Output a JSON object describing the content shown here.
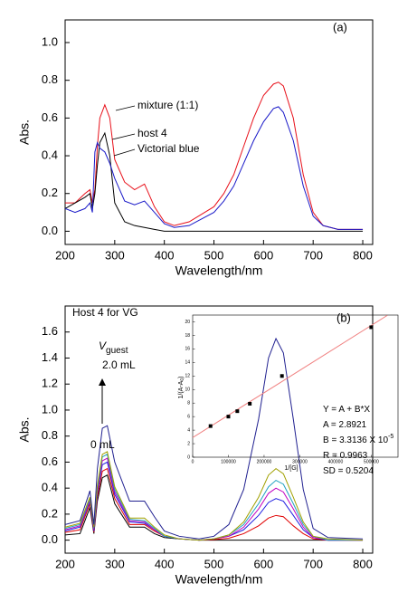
{
  "chart_data": [
    {
      "type": "line",
      "panel_label": "(a)",
      "x_label": "Wavelength/nm",
      "y_label": "Abs.",
      "x": [
        200,
        220,
        240,
        250,
        255,
        260,
        265,
        270,
        280,
        290,
        300,
        320,
        340,
        360,
        380,
        400,
        420,
        450,
        500,
        520,
        540,
        560,
        580,
        600,
        620,
        630,
        640,
        660,
        680,
        700,
        720,
        750,
        800
      ],
      "xlim": [
        200,
        820
      ],
      "xticks": [
        200,
        300,
        400,
        500,
        600,
        700,
        800
      ],
      "ylim": [
        -0.07,
        1.12
      ],
      "yticks": [
        {
          "value": 0,
          "label": "0.0"
        },
        {
          "value": 0.2,
          "label": "0.2"
        },
        {
          "value": 0.4,
          "label": "0.4"
        },
        {
          "value": 0.6,
          "label": "0.6"
        },
        {
          "value": 0.8,
          "label": "0.8"
        },
        {
          "value": 1,
          "label": "1.0"
        }
      ],
      "series": [
        {
          "name": "mixture (1:1)",
          "color": "#e8101a",
          "values": [
            0.15,
            0.15,
            0.2,
            0.22,
            0.15,
            0.22,
            0.45,
            0.6,
            0.67,
            0.6,
            0.38,
            0.26,
            0.22,
            0.25,
            0.13,
            0.05,
            0.03,
            0.05,
            0.13,
            0.2,
            0.3,
            0.45,
            0.6,
            0.72,
            0.78,
            0.79,
            0.77,
            0.6,
            0.3,
            0.1,
            0.03,
            0.01,
            0.01
          ]
        },
        {
          "name": "host 4",
          "color": "#000000",
          "values": [
            0.12,
            0.15,
            0.18,
            0.2,
            0.12,
            0.2,
            0.35,
            0.47,
            0.52,
            0.4,
            0.15,
            0.05,
            0.03,
            0.02,
            0.01,
            0,
            0,
            0,
            0,
            0,
            0,
            0,
            0,
            0,
            0,
            0,
            0,
            0,
            0,
            0,
            0,
            0,
            0
          ]
        },
        {
          "name": "Victorial blue",
          "color": "#1818c8",
          "values": [
            0.12,
            0.1,
            0.12,
            0.15,
            0.1,
            0.42,
            0.47,
            0.44,
            0.42,
            0.36,
            0.28,
            0.16,
            0.14,
            0.16,
            0.1,
            0.04,
            0.02,
            0.03,
            0.1,
            0.16,
            0.24,
            0.36,
            0.48,
            0.58,
            0.65,
            0.66,
            0.63,
            0.48,
            0.24,
            0.08,
            0.03,
            0.01,
            0.01
          ]
        }
      ]
    },
    {
      "type": "line",
      "panel_label": "(b)",
      "x_label": "Wavelength/nm",
      "y_label": "Abs.",
      "title": "Host 4 for VG",
      "volume_label": [
        "V",
        "guest"
      ],
      "volume_top": "2.0 mL",
      "volume_bottom": "0 mL",
      "x": [
        200,
        230,
        250,
        258,
        265,
        275,
        285,
        300,
        330,
        360,
        380,
        400,
        430,
        470,
        500,
        530,
        560,
        590,
        610,
        625,
        640,
        660,
        680,
        700,
        730,
        800
      ],
      "xlim": [
        200,
        820
      ],
      "xticks": [
        200,
        300,
        400,
        500,
        600,
        700,
        800
      ],
      "ylim": [
        -0.1,
        1.8
      ],
      "yticks": [
        {
          "value": 0,
          "label": "0.0"
        },
        {
          "value": 0.2,
          "label": "0.2"
        },
        {
          "value": 0.4,
          "label": "0.4"
        },
        {
          "value": 0.6,
          "label": "0.6"
        },
        {
          "value": 0.8,
          "label": "0.8"
        },
        {
          "value": 1,
          "label": "1.0"
        },
        {
          "value": 1.2,
          "label": "1.2"
        },
        {
          "value": 1.4,
          "label": "1.4"
        },
        {
          "value": 1.6,
          "label": "1.6"
        }
      ],
      "series": [
        {
          "color": "#000000",
          "values": [
            0.04,
            0.05,
            0.25,
            0.05,
            0.3,
            0.48,
            0.5,
            0.28,
            0.1,
            0.1,
            0.05,
            0.02,
            0.01,
            0,
            0,
            0,
            0,
            0,
            0,
            0,
            0,
            0,
            0,
            0,
            0,
            0
          ]
        },
        {
          "color": "#e00000",
          "values": [
            0.06,
            0.08,
            0.28,
            0.06,
            0.33,
            0.53,
            0.55,
            0.32,
            0.12,
            0.12,
            0.07,
            0.03,
            0.01,
            0,
            0.004,
            0.015,
            0.05,
            0.11,
            0.17,
            0.19,
            0.18,
            0.11,
            0.05,
            0.01,
            0,
            0
          ]
        },
        {
          "color": "#2020e0",
          "values": [
            0.07,
            0.1,
            0.3,
            0.07,
            0.36,
            0.58,
            0.6,
            0.35,
            0.14,
            0.13,
            0.08,
            0.03,
            0.01,
            0,
            0.01,
            0.03,
            0.08,
            0.19,
            0.29,
            0.32,
            0.3,
            0.19,
            0.08,
            0.02,
            0,
            0
          ]
        },
        {
          "color": "#c000c0",
          "values": [
            0.08,
            0.11,
            0.31,
            0.08,
            0.38,
            0.61,
            0.63,
            0.37,
            0.15,
            0.14,
            0.08,
            0.03,
            0.01,
            0,
            0.01,
            0.03,
            0.1,
            0.24,
            0.36,
            0.4,
            0.37,
            0.24,
            0.1,
            0.02,
            0,
            0
          ]
        },
        {
          "color": "#20a0c0",
          "values": [
            0.09,
            0.12,
            0.32,
            0.09,
            0.4,
            0.64,
            0.66,
            0.39,
            0.16,
            0.15,
            0.09,
            0.03,
            0.01,
            0,
            0.01,
            0.04,
            0.12,
            0.28,
            0.41,
            0.46,
            0.43,
            0.28,
            0.12,
            0.03,
            0,
            0
          ]
        },
        {
          "color": "#a0a000",
          "values": [
            0.1,
            0.13,
            0.33,
            0.1,
            0.42,
            0.66,
            0.68,
            0.41,
            0.17,
            0.17,
            0.1,
            0.04,
            0.01,
            0,
            0.01,
            0.04,
            0.14,
            0.33,
            0.5,
            0.55,
            0.51,
            0.33,
            0.14,
            0.03,
            0.01,
            0
          ]
        },
        {
          "color": "#202090",
          "values": [
            0.12,
            0.15,
            0.38,
            0.12,
            0.55,
            0.86,
            0.88,
            0.6,
            0.3,
            0.3,
            0.18,
            0.07,
            0.03,
            0.01,
            0.03,
            0.12,
            0.39,
            0.93,
            1.4,
            1.55,
            1.44,
            0.93,
            0.39,
            0.09,
            0.02,
            0.01
          ]
        }
      ]
    },
    {
      "type": "scatter",
      "x_label": "1/[G]",
      "y_label": [
        "1/(A-A",
        "0",
        ")"
      ],
      "xlim": [
        0,
        575000
      ],
      "xticks": [
        0,
        100000,
        200000,
        300000,
        400000,
        500000
      ],
      "ylim": [
        0,
        21
      ],
      "yticks": [
        0,
        2,
        4,
        6,
        8,
        10,
        12,
        14,
        16,
        18,
        20
      ],
      "series": [
        {
          "color": "#000000",
          "x": [
            50000,
            100000,
            125000,
            160000,
            250000,
            500000
          ],
          "values": [
            4.6,
            6.0,
            6.8,
            7.9,
            12.0,
            19.2
          ]
        }
      ],
      "fit_line": {
        "color": "#f08080",
        "x": [
          0,
          545000
        ],
        "values": [
          2.8921,
          20.951
        ]
      },
      "fit_text": [
        "Y = A + B*X",
        "A = 2.8921",
        "B = 3.3136 X 10",
        "R = 0.9963",
        "SD = 0.5204"
      ],
      "b_exponent": "-5"
    }
  ]
}
